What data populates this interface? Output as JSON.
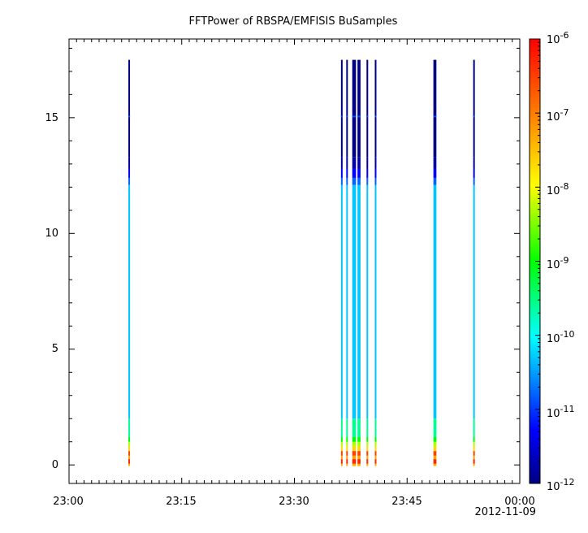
{
  "chart_data": {
    "type": "heatmap",
    "title": "FFTPower of RBSPA/EMFISIS  BuSamples",
    "xlabel": "",
    "ylabel": "",
    "x_tick_labels": [
      "23:00",
      "23:15",
      "23:30",
      "23:45",
      "00:00"
    ],
    "x_date_label": "2012-11-09",
    "x_range_minutes": [
      0,
      60
    ],
    "y_tick_labels": [
      "0",
      "5",
      "10",
      "15"
    ],
    "y_tick_values": [
      0,
      5,
      10,
      15
    ],
    "ylim": [
      -0.8,
      18.4
    ],
    "data_ymax": 17.5,
    "colorbar": {
      "scale": "log",
      "range": [
        1e-12,
        1e-06
      ],
      "tick_labels": [
        {
          "base": "10",
          "exp": "-6"
        },
        {
          "base": "10",
          "exp": "-7"
        },
        {
          "base": "10",
          "exp": "-8"
        },
        {
          "base": "10",
          "exp": "-9"
        },
        {
          "base": "10",
          "exp": "-10"
        },
        {
          "base": "10",
          "exp": "-11"
        },
        {
          "base": "10",
          "exp": "-12"
        }
      ],
      "colors": [
        "#000080",
        "#0000ff",
        "#00ffff",
        "#00ff00",
        "#ffff00",
        "#ff8000",
        "#ff0000"
      ]
    },
    "bursts_minutes": [
      [
        7.9,
        8.1
      ],
      [
        36.2,
        36.4
      ],
      [
        36.9,
        37.1
      ],
      [
        37.7,
        38.2
      ],
      [
        38.4,
        38.8
      ],
      [
        39.6,
        39.8
      ],
      [
        40.7,
        40.9
      ],
      [
        48.5,
        48.9
      ],
      [
        53.8,
        54.0
      ]
    ],
    "spectrum_profile": [
      {
        "y0": -0.05,
        "y1": 0.05,
        "log_power": -7.4
      },
      {
        "y0": 0.05,
        "y1": 0.25,
        "log_power": -6.3
      },
      {
        "y0": 0.25,
        "y1": 0.4,
        "log_power": -7.3
      },
      {
        "y0": 0.4,
        "y1": 0.6,
        "log_power": -6.5
      },
      {
        "y0": 0.6,
        "y1": 0.8,
        "log_power": -7.7
      },
      {
        "y0": 0.8,
        "y1": 1.0,
        "log_power": -8.3
      },
      {
        "y0": 1.0,
        "y1": 1.2,
        "log_power": -9.0
      },
      {
        "y0": 1.2,
        "y1": 2.0,
        "log_power": -9.6
      },
      {
        "y0": 2.0,
        "y1": 12.1,
        "log_power": -10.3
      },
      {
        "y0": 12.1,
        "y1": 12.4,
        "log_power": -10.8
      },
      {
        "y0": 12.4,
        "y1": 12.8,
        "log_power": -11.3
      },
      {
        "y0": 12.8,
        "y1": 13.3,
        "log_power": -11.8
      },
      {
        "y0": 13.3,
        "y1": 17.5,
        "log_power": -12.0
      }
    ],
    "spectral_line": {
      "y": 15.05,
      "log_power": -10.9
    }
  }
}
